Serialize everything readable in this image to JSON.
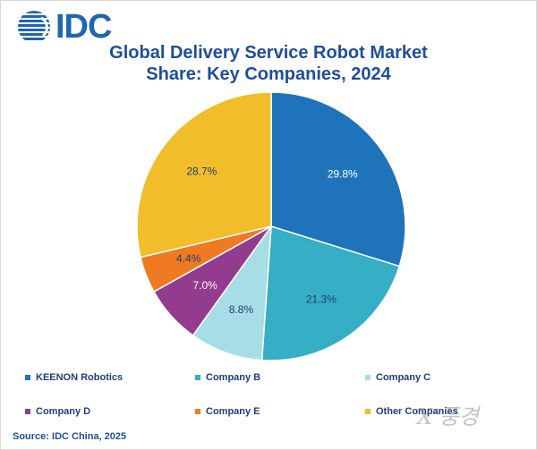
{
  "logo": {
    "text": "IDC",
    "icon": "idc-globe-logo",
    "color": "#1f66b1"
  },
  "title": {
    "line1": "Global Delivery Service Robot Market",
    "line2": "Share: Key Companies, 2024"
  },
  "chart_data": {
    "type": "pie",
    "title": "Global Delivery Service Robot Market Share: Key Companies, 2024",
    "slices": [
      {
        "label": "KEENON Robotics",
        "value": 29.8,
        "display": "29.8%",
        "color": "#1f73bb",
        "label_color": "#ffffff"
      },
      {
        "label": "Company B",
        "value": 21.3,
        "display": "21.3%",
        "color": "#35aec6",
        "label_color": "#1f3d7a"
      },
      {
        "label": "Company C",
        "value": 8.8,
        "display": "8.8%",
        "color": "#a6dde6",
        "label_color": "#1f3d7a"
      },
      {
        "label": "Company D",
        "value": 7.0,
        "display": "7.0%",
        "color": "#933b8e",
        "label_color": "#ffffff"
      },
      {
        "label": "Company E",
        "value": 4.4,
        "display": "4.4%",
        "color": "#ef7a21",
        "label_color": "#1f3d7a"
      },
      {
        "label": "Other Companies",
        "value": 28.7,
        "display": "28.7%",
        "color": "#f1bd2a",
        "label_color": "#1f3d7a"
      }
    ],
    "start_angle": "12 o'clock",
    "direction": "clockwise",
    "legend_position": "bottom"
  },
  "source": "Source: IDC China, 2025",
  "watermark": "X‘풍경"
}
